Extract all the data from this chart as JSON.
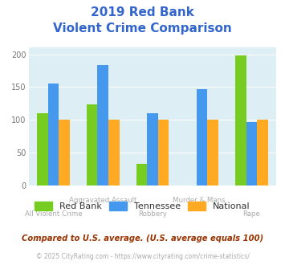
{
  "title_line1": "2019 Red Bank",
  "title_line2": "Violent Crime Comparison",
  "categories": [
    "All Violent Crime",
    "Aggravated Assault",
    "Robbery",
    "Murder & Mans...",
    "Rape"
  ],
  "cat_top": [
    "Aggravated Assault",
    "",
    "Murder & Mans...",
    ""
  ],
  "cat_bottom": [
    "All Violent Crime",
    "Robbery",
    "Rape"
  ],
  "series": {
    "Red Bank": [
      110,
      123,
      33,
      0,
      198
    ],
    "Tennessee": [
      155,
      183,
      110,
      147,
      97
    ],
    "National": [
      100,
      100,
      100,
      100,
      100
    ]
  },
  "colors": {
    "Red Bank": "#77cc22",
    "Tennessee": "#4499ee",
    "National": "#ffaa22"
  },
  "ylim": [
    0,
    210
  ],
  "yticks": [
    0,
    50,
    100,
    150,
    200
  ],
  "plot_bg": "#ddeef5",
  "title_color": "#3366cc",
  "tick_label_color": "#aaaaaa",
  "footer_text": "Compared to U.S. average. (U.S. average equals 100)",
  "copyright_text": "© 2025 CityRating.com - https://www.cityrating.com/crime-statistics/",
  "footer_color": "#993300",
  "copyright_color": "#aaaaaa",
  "bar_width": 0.22
}
